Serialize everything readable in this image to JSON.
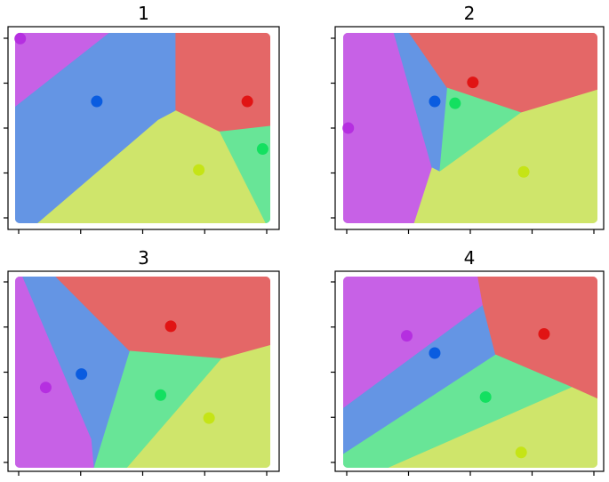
{
  "chart_data": {
    "type": "voronoi-grid",
    "panels": [
      {
        "title": "1",
        "regions": [
          {
            "color": "#c761e6",
            "polygon": [
              [
                0.0,
                0.0
              ],
              [
                0.37,
                0.0
              ],
              [
                0.0,
                0.39
              ]
            ]
          },
          {
            "color": "#6495e4",
            "polygon": [
              [
                0.37,
                0.0
              ],
              [
                0.63,
                0.0
              ],
              [
                0.63,
                0.41
              ],
              [
                0.56,
                0.46
              ],
              [
                0.09,
                1.0
              ],
              [
                0.0,
                1.0
              ],
              [
                0.0,
                0.39
              ]
            ]
          },
          {
            "color": "#e46767",
            "polygon": [
              [
                0.63,
                0.0
              ],
              [
                1.0,
                0.0
              ],
              [
                1.0,
                0.49
              ],
              [
                0.8,
                0.52
              ],
              [
                0.63,
                0.41
              ]
            ]
          },
          {
            "color": "#68e597",
            "polygon": [
              [
                0.8,
                0.52
              ],
              [
                1.0,
                0.49
              ],
              [
                1.0,
                1.0
              ],
              [
                0.98,
                1.0
              ]
            ]
          },
          {
            "color": "#cfe56b",
            "polygon": [
              [
                0.56,
                0.46
              ],
              [
                0.63,
                0.41
              ],
              [
                0.8,
                0.52
              ],
              [
                0.98,
                1.0
              ],
              [
                0.09,
                1.0
              ]
            ]
          }
        ],
        "points": [
          {
            "color": "#b52fe0",
            "x": 0.02,
            "y": 0.03
          },
          {
            "color": "#0a5ce0",
            "x": 0.32,
            "y": 0.36
          },
          {
            "color": "#e11414",
            "x": 0.91,
            "y": 0.36
          },
          {
            "color": "#13e060",
            "x": 0.97,
            "y": 0.61
          },
          {
            "color": "#c5e416",
            "x": 0.72,
            "y": 0.72
          }
        ]
      },
      {
        "title": "2",
        "regions": [
          {
            "color": "#c761e6",
            "polygon": [
              [
                0.0,
                0.0
              ],
              [
                0.0,
                1.0
              ],
              [
                0.28,
                1.0
              ],
              [
                0.35,
                0.71
              ],
              [
                0.2,
                0.0
              ]
            ]
          },
          {
            "color": "#6495e4",
            "polygon": [
              [
                0.26,
                0.0
              ],
              [
                0.41,
                0.29
              ],
              [
                0.38,
                0.73
              ],
              [
                0.35,
                0.71
              ],
              [
                0.2,
                0.0
              ]
            ]
          },
          {
            "color": "#e46767",
            "polygon": [
              [
                0.26,
                0.0
              ],
              [
                1.0,
                0.0
              ],
              [
                1.0,
                0.3
              ],
              [
                0.7,
                0.42
              ],
              [
                0.41,
                0.29
              ]
            ]
          },
          {
            "color": "#68e597",
            "polygon": [
              [
                0.41,
                0.29
              ],
              [
                0.7,
                0.42
              ],
              [
                0.38,
                0.73
              ]
            ]
          },
          {
            "color": "#cfe56b",
            "polygon": [
              [
                0.38,
                0.73
              ],
              [
                0.7,
                0.42
              ],
              [
                1.0,
                0.3
              ],
              [
                1.0,
                1.0
              ],
              [
                0.28,
                1.0
              ],
              [
                0.35,
                0.71
              ]
            ]
          }
        ],
        "points": [
          {
            "color": "#b52fe0",
            "x": 0.02,
            "y": 0.5
          },
          {
            "color": "#0a5ce0",
            "x": 0.36,
            "y": 0.36
          },
          {
            "color": "#e11414",
            "x": 0.51,
            "y": 0.26
          },
          {
            "color": "#13e060",
            "x": 0.44,
            "y": 0.37
          },
          {
            "color": "#c5e416",
            "x": 0.71,
            "y": 0.73
          }
        ]
      },
      {
        "title": "3",
        "regions": [
          {
            "color": "#c761e6",
            "polygon": [
              [
                0.0,
                0.0
              ],
              [
                0.03,
                0.0
              ],
              [
                0.3,
                0.85
              ],
              [
                0.31,
                1.0
              ],
              [
                0.0,
                1.0
              ]
            ]
          },
          {
            "color": "#6495e4",
            "polygon": [
              [
                0.03,
                0.0
              ],
              [
                0.16,
                0.0
              ],
              [
                0.45,
                0.39
              ],
              [
                0.31,
                1.0
              ],
              [
                0.3,
                0.85
              ]
            ]
          },
          {
            "color": "#e46767",
            "polygon": [
              [
                0.16,
                0.0
              ],
              [
                1.0,
                0.0
              ],
              [
                1.0,
                0.36
              ],
              [
                0.81,
                0.43
              ],
              [
                0.45,
                0.39
              ]
            ]
          },
          {
            "color": "#68e597",
            "polygon": [
              [
                0.45,
                0.39
              ],
              [
                0.81,
                0.43
              ],
              [
                0.44,
                1.0
              ],
              [
                0.31,
                1.0
              ]
            ]
          },
          {
            "color": "#cfe56b",
            "polygon": [
              [
                0.81,
                0.43
              ],
              [
                1.0,
                0.36
              ],
              [
                1.0,
                1.0
              ],
              [
                0.44,
                1.0
              ]
            ]
          }
        ],
        "points": [
          {
            "color": "#b52fe0",
            "x": 0.12,
            "y": 0.58
          },
          {
            "color": "#0a5ce0",
            "x": 0.26,
            "y": 0.51
          },
          {
            "color": "#e11414",
            "x": 0.61,
            "y": 0.26
          },
          {
            "color": "#13e060",
            "x": 0.57,
            "y": 0.62
          },
          {
            "color": "#c5e416",
            "x": 0.76,
            "y": 0.74
          }
        ]
      },
      {
        "title": "4",
        "regions": [
          {
            "color": "#c761e6",
            "polygon": [
              [
                0.0,
                0.0
              ],
              [
                0.53,
                0.0
              ],
              [
                0.55,
                0.15
              ],
              [
                0.0,
                0.69
              ]
            ]
          },
          {
            "color": "#6495e4",
            "polygon": [
              [
                0.55,
                0.15
              ],
              [
                0.6,
                0.41
              ],
              [
                0.0,
                0.93
              ],
              [
                0.0,
                0.69
              ]
            ]
          },
          {
            "color": "#e46767",
            "polygon": [
              [
                0.53,
                0.0
              ],
              [
                1.0,
                0.0
              ],
              [
                1.0,
                0.64
              ],
              [
                0.9,
                0.58
              ],
              [
                0.6,
                0.41
              ],
              [
                0.55,
                0.15
              ]
            ]
          },
          {
            "color": "#68e597",
            "polygon": [
              [
                0.6,
                0.41
              ],
              [
                0.9,
                0.58
              ],
              [
                0.18,
                1.0
              ],
              [
                0.0,
                1.0
              ],
              [
                0.0,
                0.93
              ]
            ]
          },
          {
            "color": "#cfe56b",
            "polygon": [
              [
                0.9,
                0.58
              ],
              [
                1.0,
                0.64
              ],
              [
                1.0,
                1.0
              ],
              [
                0.18,
                1.0
              ]
            ]
          }
        ],
        "points": [
          {
            "color": "#b52fe0",
            "x": 0.25,
            "y": 0.31
          },
          {
            "color": "#0a5ce0",
            "x": 0.36,
            "y": 0.4
          },
          {
            "color": "#e11414",
            "x": 0.79,
            "y": 0.3
          },
          {
            "color": "#13e060",
            "x": 0.56,
            "y": 0.63
          },
          {
            "color": "#c5e416",
            "x": 0.7,
            "y": 0.92
          }
        ]
      }
    ]
  }
}
